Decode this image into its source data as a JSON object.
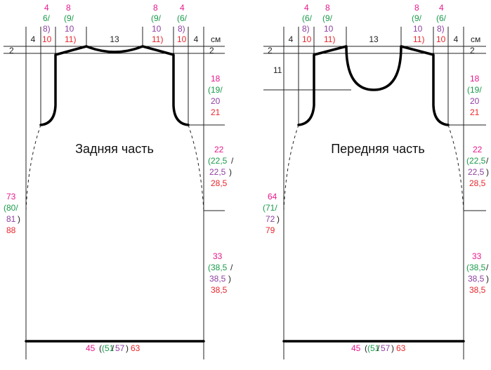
{
  "colors": {
    "s1": "#e6198c",
    "s2": "#1a9a4a",
    "s3": "#8e3fa0",
    "s4": "#e8262c",
    "black": "#222222"
  },
  "back": {
    "title": "Задняя часть",
    "unit": "см",
    "top_margin": "2",
    "neck_width": "13",
    "edge_left": "4",
    "edge_right": "4",
    "shoulder_left": [
      "4",
      "6/",
      "8)",
      "10"
    ],
    "strap_left": [
      "8",
      "(9/",
      "10",
      "11)"
    ],
    "strap_right": [
      "8",
      "(9/",
      "10",
      "11)"
    ],
    "shoulder_right": [
      "4",
      "(6/",
      "8)",
      "10"
    ],
    "armhole_depth": [
      "18",
      "(19/",
      "20",
      "21"
    ],
    "waist": [
      "22",
      "(22,5",
      "22,5",
      "28,5"
    ],
    "lower": [
      "33",
      "(38,5",
      "38,5",
      "38,5"
    ],
    "total_length": [
      "73",
      "(80/",
      "81",
      "88"
    ],
    "bottom_width": [
      "45",
      "(51",
      "57",
      "63"
    ]
  },
  "front": {
    "title": "Передняя часть",
    "unit": "см",
    "top_margin": "2",
    "neck_width": "13",
    "neck_depth": "11",
    "edge_left": "4",
    "edge_right": "4",
    "shoulder_left": [
      "4",
      "(6/",
      "8)",
      "10"
    ],
    "strap_left": [
      "8",
      "(9/",
      "10",
      "11)"
    ],
    "strap_right": [
      "8",
      "(9/",
      "10",
      "11)"
    ],
    "shoulder_right": [
      "4",
      "(6/",
      "8)",
      "10"
    ],
    "armhole_depth": [
      "18",
      "(19/",
      "20",
      "21"
    ],
    "waist": [
      "22",
      "(22,5",
      "22,5",
      "28,5"
    ],
    "lower": [
      "33",
      "(38,5",
      "38,5",
      "38,5"
    ],
    "total_length": [
      "64",
      "(71/",
      "72",
      "79"
    ],
    "bottom_width": [
      "45",
      "(51",
      "57",
      "63"
    ]
  }
}
